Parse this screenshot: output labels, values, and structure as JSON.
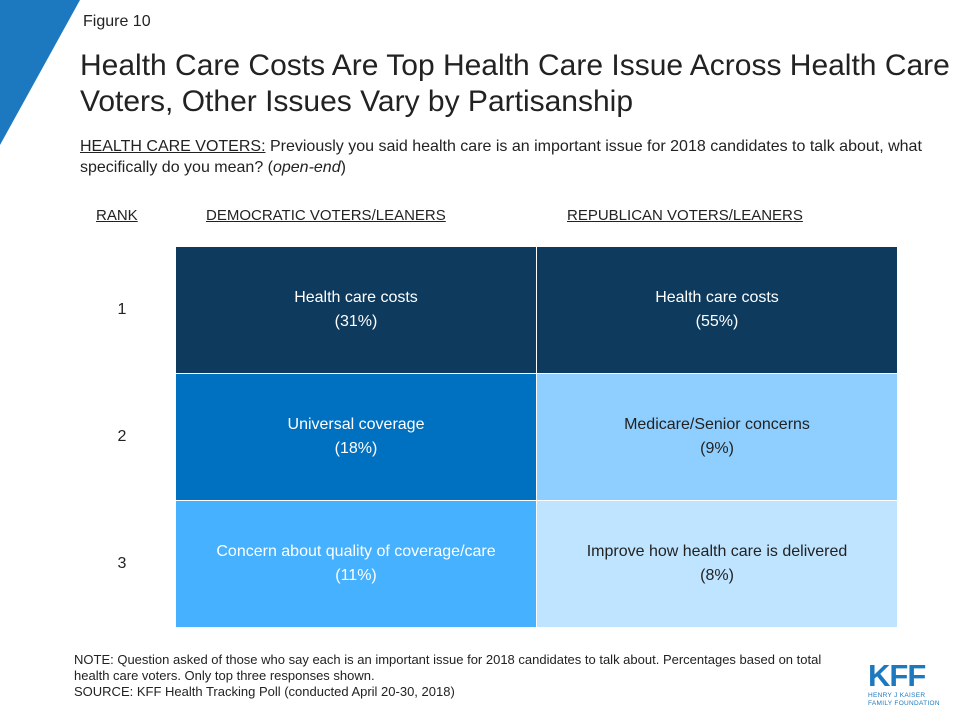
{
  "figure_label": "Figure 10",
  "title": "Health Care Costs Are Top Health Care Issue Across Health Care Voters, Other Issues Vary by Partisanship",
  "question": {
    "prefix": "HEALTH CARE VOTERS:",
    "text": " Previously you said health care is an important issue for 2018 candidates to talk about, what specifically do you mean? (",
    "italic": "open-end",
    "suffix": ")"
  },
  "colors": {
    "corner": "#1d79bf",
    "dem": [
      "#0e3a5e",
      "#0070c0",
      "#45b1ff"
    ],
    "rep": [
      "#0e3a5e",
      "#8fcfff",
      "#bfe4ff"
    ]
  },
  "chart_data": {
    "type": "table",
    "columns": [
      "RANK",
      "DEMOCRATIC VOTERS/LEANERS",
      "REPUBLICAN VOTERS/LEANERS"
    ],
    "rows": [
      {
        "rank": "1",
        "dem": {
          "label": "Health care costs",
          "pct": "(31%)",
          "value": 31
        },
        "rep": {
          "label": "Health care costs",
          "pct": "(55%)",
          "value": 55
        }
      },
      {
        "rank": "2",
        "dem": {
          "label": "Universal coverage",
          "pct": "(18%)",
          "value": 18
        },
        "rep": {
          "label": "Medicare/Senior concerns",
          "pct": "(9%)",
          "value": 9
        }
      },
      {
        "rank": "3",
        "dem": {
          "label": "Concern about quality of coverage/care",
          "pct": "(11%)",
          "value": 11
        },
        "rep": {
          "label": "Improve how health care is delivered",
          "pct": "(8%)",
          "value": 8
        }
      }
    ]
  },
  "notes": [
    "NOTE: Question asked of those who say each is an important issue for 2018 candidates to talk about. Percentages based on total health care voters. Only top three responses shown.",
    "SOURCE: KFF Health Tracking Poll (conducted April 20-30, 2018)"
  ],
  "logo": {
    "text": "KFF",
    "sub": [
      "HENRY J KAISER",
      "FAMILY FOUNDATION"
    ]
  }
}
